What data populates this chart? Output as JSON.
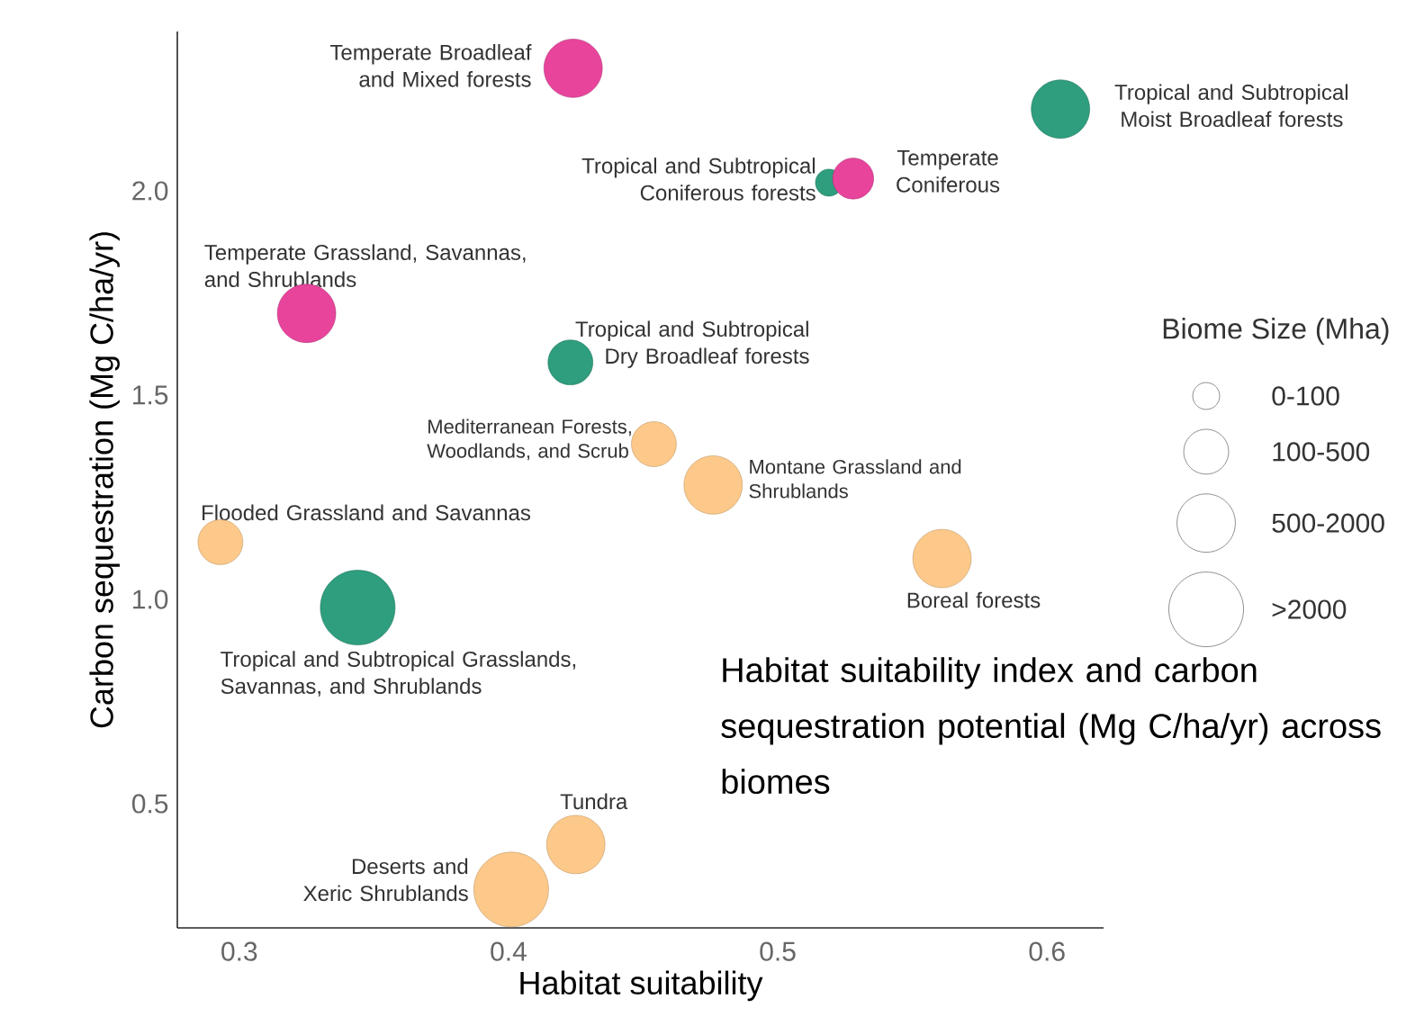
{
  "chart_data": {
    "type": "bubble",
    "xlabel": "Habitat suitability",
    "ylabel": "Carbon sequestration (Mg C/ha/yr)",
    "xlim": [
      0.277,
      0.621
    ],
    "ylim": [
      0.196,
      2.39
    ],
    "xticks": [
      0.3,
      0.4,
      0.5,
      0.6
    ],
    "yticks": [
      0.5,
      {
        "value": 1,
        "label": "1.0"
      },
      1.5,
      {
        "value": 2,
        "label": "2.0"
      }
    ],
    "x": [
      0.424,
      0.605,
      0.519,
      0.528,
      0.325,
      0.423,
      0.454,
      0.476,
      0.293,
      0.561,
      0.344,
      0.425,
      0.401
    ],
    "values": [
      2.3,
      2.2,
      2.02,
      2.03,
      1.7,
      1.58,
      1.38,
      1.28,
      1.14,
      1.1,
      0.98,
      0.4,
      0.29
    ],
    "sizes": [
      0.61,
      0.61,
      0.13,
      0.3,
      0.61,
      0.36,
      0.36,
      0.61,
      0.36,
      0.61,
      1,
      0.61,
      1
    ],
    "colors": [
      "#e8449c",
      "#2e9e7e",
      "#2e9e7e",
      "#e8449c",
      "#e8449c",
      "#2e9e7e",
      "#fdc98a",
      "#fdc98a",
      "#fdc98a",
      "#fdc98a",
      "#2e9e7e",
      "#fdc98a",
      "#fdc98a"
    ],
    "legend_title": "Biome Size (Mha)",
    "size_legend": [
      {
        "value": 0.13,
        "label": "0-100"
      },
      {
        "value": 0.36,
        "label": "100-500"
      },
      {
        "value": 0.61,
        "label": "500-2000"
      },
      {
        "value": 1,
        "label": ">2000"
      }
    ],
    "annotations": [
      {
        "text": "Temperate Broadleaf and Mixed forests",
        "x": 0.424,
        "y": 2.3
      },
      {
        "text": "Tropical and Subtropical Moist Broadleaf forests",
        "x": 0.605,
        "y": 2.2
      },
      {
        "text": "Tropical and Subtropical Coniferous forests",
        "x": 0.519,
        "y": 2.02
      },
      {
        "text": "Temperate Coniferous",
        "x": 0.528,
        "y": 2.03
      },
      {
        "text": "Temperate Grassland, Savannas, and Shrublands",
        "x": 0.325,
        "y": 1.7
      },
      {
        "text": "Tropical and Subtropical Dry Broadleaf forests",
        "x": 0.423,
        "y": 1.58
      },
      {
        "text": "Mediterranean Forests, Woodlands, and Scrub",
        "x": 0.454,
        "y": 1.38
      },
      {
        "text": "Montane Grassland and Shrublands",
        "x": 0.476,
        "y": 1.28
      },
      {
        "text": "Flooded Grassland and Savannas",
        "x": 0.293,
        "y": 1.14
      },
      {
        "text": "Boreal forests",
        "x": 0.561,
        "y": 1.1
      },
      {
        "text": "Tropical and Subtropical Grasslands, Savannas, and Shrublands",
        "x": 0.344,
        "y": 0.98
      },
      {
        "text": "Tundra",
        "x": 0.425,
        "y": 0.4
      },
      {
        "text": "Deserts and Xeric Shrublands",
        "x": 0.401,
        "y": 0.29
      },
      "Habitat suitability index and carbon sequestration potential (Mg C/ha/yr) across biomes"
    ]
  }
}
